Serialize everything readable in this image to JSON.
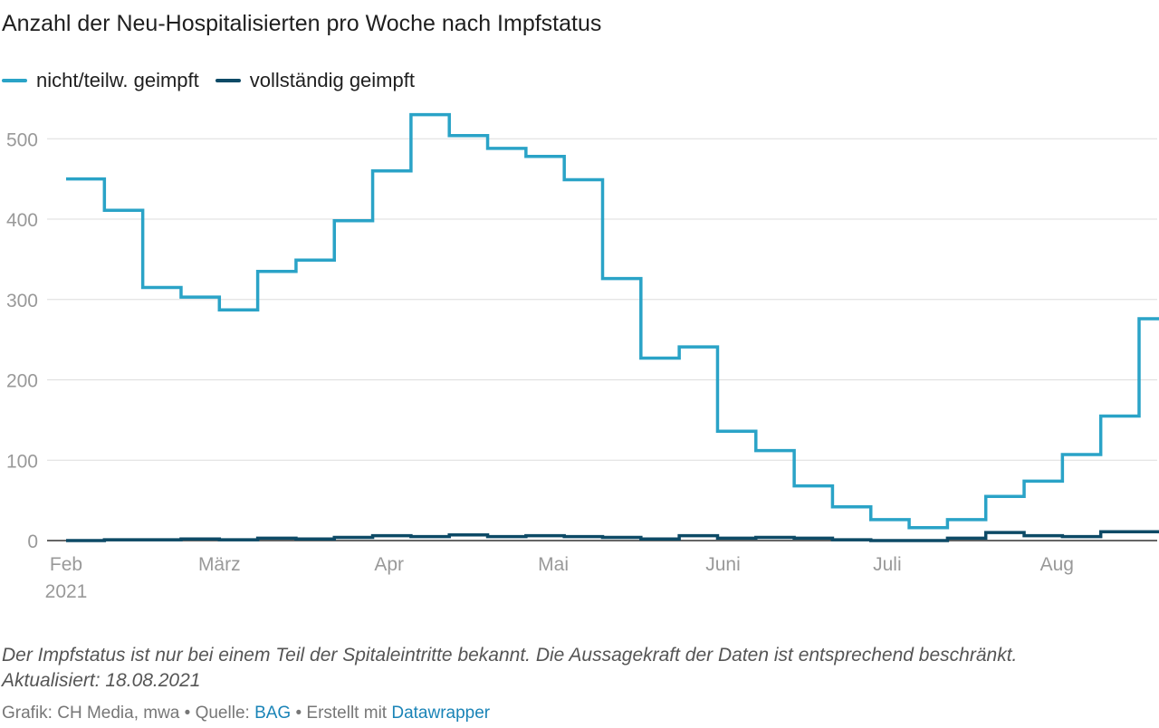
{
  "title": "Anzahl der Neu-Hospitalisierten pro Woche nach Impfstatus",
  "legend": [
    {
      "label": "nicht/teilw. geimpft",
      "color": "#2aa3c7"
    },
    {
      "label": "vollständig geimpft",
      "color": "#0d4a66"
    }
  ],
  "notes": {
    "line1": "Der Impfstatus ist nur bei einem Teil der Spitaleintritte bekannt. Die Aussagekraft der Daten ist entsprechend beschränkt.",
    "line2": "Aktualisiert: 18.08.2021"
  },
  "footer": {
    "prefix": "Grafik: CH Media, mwa • Quelle: ",
    "source": "BAG",
    "middle": " • Erstellt mit ",
    "tool": "Datawrapper"
  },
  "chart_data": {
    "type": "line",
    "step": true,
    "x": [
      "2021-02-01",
      "2021-02-08",
      "2021-02-15",
      "2021-02-22",
      "2021-03-01",
      "2021-03-08",
      "2021-03-15",
      "2021-03-22",
      "2021-03-29",
      "2021-04-05",
      "2021-04-12",
      "2021-04-19",
      "2021-04-26",
      "2021-05-03",
      "2021-05-10",
      "2021-05-17",
      "2021-05-24",
      "2021-05-31",
      "2021-06-07",
      "2021-06-14",
      "2021-06-21",
      "2021-06-28",
      "2021-07-05",
      "2021-07-12",
      "2021-07-19",
      "2021-07-26",
      "2021-08-02",
      "2021-08-09",
      "2021-08-16"
    ],
    "x_tick_labels": [
      {
        "date": "2021-02-01",
        "label": "Feb",
        "sublabel": "2021"
      },
      {
        "date": "2021-03-01",
        "label": "März"
      },
      {
        "date": "2021-04-01",
        "label": "Apr"
      },
      {
        "date": "2021-05-01",
        "label": "Mai"
      },
      {
        "date": "2021-06-01",
        "label": "Juni"
      },
      {
        "date": "2021-07-01",
        "label": "Juli"
      },
      {
        "date": "2021-08-01",
        "label": "Aug"
      }
    ],
    "series": [
      {
        "name": "nicht/teilw. geimpft",
        "color": "#2aa3c7",
        "values": [
          450,
          411,
          315,
          303,
          287,
          335,
          349,
          398,
          460,
          530,
          504,
          488,
          478,
          449,
          326,
          227,
          241,
          136,
          112,
          68,
          42,
          26,
          16,
          26,
          55,
          74,
          107,
          155,
          276
        ]
      },
      {
        "name": "vollständig geimpft",
        "color": "#0d4a66",
        "values": [
          0,
          1,
          1,
          2,
          1,
          3,
          2,
          4,
          6,
          5,
          7,
          5,
          6,
          5,
          4,
          2,
          6,
          3,
          4,
          3,
          1,
          0,
          0,
          3,
          10,
          6,
          5,
          11,
          11
        ]
      }
    ],
    "yticks": [
      0,
      100,
      200,
      300,
      400,
      500
    ],
    "ylim": [
      0,
      560
    ],
    "xlim": [
      "2021-02-01",
      "2021-08-16"
    ],
    "grid": true,
    "legend_position": "top-left"
  }
}
